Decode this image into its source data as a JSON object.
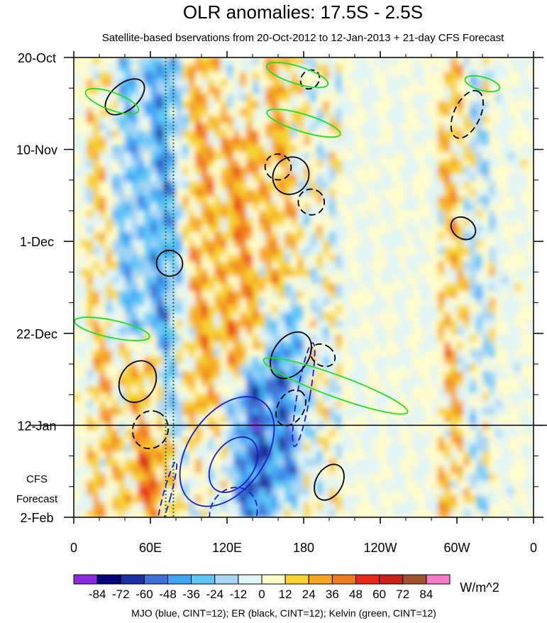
{
  "chart_data": {
    "type": "heatmap",
    "title": "OLR anomalies: 17.5S - 2.5S",
    "subtitle": "Satellite-based bservations from 20-Oct-2012 to 12-Jan-2013 + 21-day CFS Forecast",
    "x_ticks": [
      "0",
      "60E",
      "120E",
      "180",
      "120W",
      "60W",
      "0"
    ],
    "x_tick_lon": [
      0,
      60,
      120,
      180,
      240,
      300,
      360
    ],
    "y_ticks": [
      "20-Oct",
      "10-Nov",
      "1-Dec",
      "22-Dec",
      "12-Jan",
      "2-Feb"
    ],
    "y_tick_day": [
      0,
      21,
      42,
      63,
      84,
      105
    ],
    "xlim": [
      0,
      360
    ],
    "ylim_days": [
      0,
      105
    ],
    "forecast_start_day": 84,
    "forecast_label": [
      "CFS",
      "Forecast"
    ],
    "reference_lines_lon": [
      72,
      78
    ],
    "colorbar": {
      "labels": [
        "-84",
        "-72",
        "-60",
        "-48",
        "-36",
        "-24",
        "-12",
        "0",
        "12",
        "24",
        "36",
        "48",
        "60",
        "72",
        "84"
      ],
      "colors": [
        "#8a2be2",
        "#00007d",
        "#1c2fa0",
        "#3f6fd6",
        "#3fa5f5",
        "#5ec7f7",
        "#a9d6f5",
        "#e1f5f5",
        "#fffccc",
        "#f7d233",
        "#f5a623",
        "#f07b1e",
        "#e8291a",
        "#c8201a",
        "#a0522d",
        "#f57ac8"
      ],
      "units": "W/m^2"
    },
    "caption": "MJO (blue, CINT=12); ER (black, CINT=12); Kelvin (green, CINT=12)",
    "anomaly_bands": [
      {
        "lon": 25,
        "d0": 0,
        "d1": 105,
        "v": 18
      },
      {
        "lon": 40,
        "d0": 0,
        "d1": 60,
        "v": -30
      },
      {
        "lon": 60,
        "d0": 70,
        "d1": 100,
        "v": 40
      },
      {
        "lon": 70,
        "d0": 0,
        "d1": 80,
        "v": -40
      },
      {
        "lon": 100,
        "d0": 0,
        "d1": 80,
        "v": 25
      },
      {
        "lon": 130,
        "d0": 20,
        "d1": 70,
        "v": 30
      },
      {
        "lon": 140,
        "d0": 75,
        "d1": 105,
        "v": -55
      },
      {
        "lon": 165,
        "d0": 60,
        "d1": 95,
        "v": -45
      },
      {
        "lon": 160,
        "d0": 0,
        "d1": 60,
        "v": 22
      },
      {
        "lon": 300,
        "d0": 0,
        "d1": 105,
        "v": 28
      },
      {
        "lon": 310,
        "d0": 0,
        "d1": 105,
        "v": -20
      }
    ],
    "contours": {
      "mjo": [
        {
          "lon": 120,
          "day": 90,
          "rx": 30,
          "ry": 14,
          "angle": 35,
          "style": "solid"
        },
        {
          "lon": 125,
          "day": 93,
          "rx": 16,
          "ry": 7,
          "angle": 35,
          "style": "solid"
        },
        {
          "lon": 180,
          "day": 77,
          "rx": 5,
          "ry": 12,
          "angle": 10,
          "style": "dashed"
        },
        {
          "lon": 73,
          "day": 100,
          "rx": 3,
          "ry": 8,
          "angle": 15,
          "style": "dashed"
        },
        {
          "lon": 125,
          "day": 104,
          "rx": 18,
          "ry": 6,
          "angle": 30,
          "style": "dashed"
        }
      ],
      "er": [
        {
          "lon": 40,
          "day": 9,
          "rx": 18,
          "ry": 3,
          "angle": -40,
          "style": "solid"
        },
        {
          "lon": 170,
          "day": 27,
          "rx": 15,
          "ry": 4,
          "angle": -55,
          "style": "solid"
        },
        {
          "lon": 160,
          "day": 25,
          "rx": 10,
          "ry": 3,
          "angle": -55,
          "style": "dashed"
        },
        {
          "lon": 186,
          "day": 33,
          "rx": 10,
          "ry": 3,
          "angle": -60,
          "style": "dashed"
        },
        {
          "lon": 50,
          "day": 74,
          "rx": 17,
          "ry": 4,
          "angle": -60,
          "style": "solid"
        },
        {
          "lon": 75,
          "day": 47,
          "rx": 10,
          "ry": 3,
          "angle": -55,
          "style": "solid"
        },
        {
          "lon": 60,
          "day": 85,
          "rx": 15,
          "ry": 4,
          "angle": -65,
          "style": "dashed"
        },
        {
          "lon": 170,
          "day": 68,
          "rx": 20,
          "ry": 4,
          "angle": -55,
          "style": "solid"
        },
        {
          "lon": 170,
          "day": 80,
          "rx": 15,
          "ry": 3,
          "angle": -60,
          "style": "dashed"
        },
        {
          "lon": 200,
          "day": 97,
          "rx": 15,
          "ry": 3,
          "angle": -60,
          "style": "solid"
        },
        {
          "lon": 195,
          "day": 68,
          "rx": 8,
          "ry": 3,
          "angle": -55,
          "style": "dashed"
        },
        {
          "lon": 308,
          "day": 13,
          "rx": 20,
          "ry": 3,
          "angle": -65,
          "style": "dashed"
        },
        {
          "lon": 305,
          "day": 39,
          "rx": 8,
          "ry": 3,
          "angle": -55,
          "style": "solid"
        },
        {
          "lon": 185,
          "day": 5,
          "rx": 8,
          "ry": 2,
          "angle": -45,
          "style": "dashed"
        }
      ],
      "kelvin": [
        {
          "lon": 205,
          "day": 75,
          "rx": 60,
          "ry": 2.5,
          "angle": 20,
          "style": "solid"
        },
        {
          "lon": 180,
          "day": 15,
          "rx": 30,
          "ry": 2,
          "angle": 17,
          "style": "solid"
        },
        {
          "lon": 175,
          "day": 4,
          "rx": 25,
          "ry": 2,
          "angle": 17,
          "style": "solid"
        },
        {
          "lon": 30,
          "day": 10,
          "rx": 22,
          "ry": 2,
          "angle": 20,
          "style": "solid"
        },
        {
          "lon": 30,
          "day": 62,
          "rx": 30,
          "ry": 2,
          "angle": 12,
          "style": "solid"
        },
        {
          "lon": 320,
          "day": 6,
          "rx": 14,
          "ry": 1.5,
          "angle": 15,
          "style": "solid"
        }
      ]
    }
  }
}
